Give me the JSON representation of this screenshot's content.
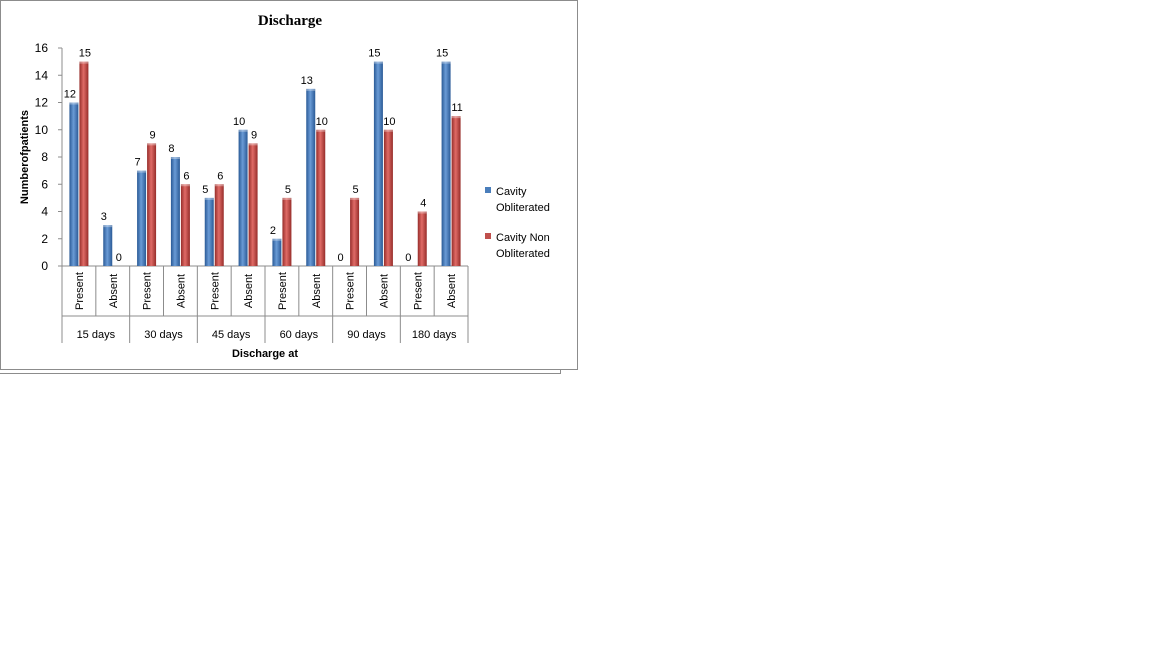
{
  "chart_data": {
    "type": "bar",
    "title": "Discharge",
    "xlabel": "Discharge at",
    "ylabel": "Numberofpatients",
    "ylim": [
      0,
      16
    ],
    "yticks": [
      0,
      2,
      4,
      6,
      8,
      10,
      12,
      14,
      16
    ],
    "groups": [
      "15 days",
      "30 days",
      "45 days",
      "60 days",
      "90 days",
      "180 days"
    ],
    "subcategories": [
      "Present",
      "Absent"
    ],
    "series": [
      {
        "name": "Cavity Obliterated",
        "color": "#4a7ebb",
        "values": [
          12,
          3,
          7,
          8,
          5,
          10,
          2,
          13,
          0,
          15,
          0,
          15
        ]
      },
      {
        "name": "Cavity Non Obliterated",
        "color": "#c0504d",
        "values": [
          15,
          0,
          9,
          6,
          6,
          9,
          5,
          10,
          5,
          10,
          4,
          11
        ]
      }
    ],
    "legend_position": "right",
    "data_labels": true,
    "grid": false
  }
}
